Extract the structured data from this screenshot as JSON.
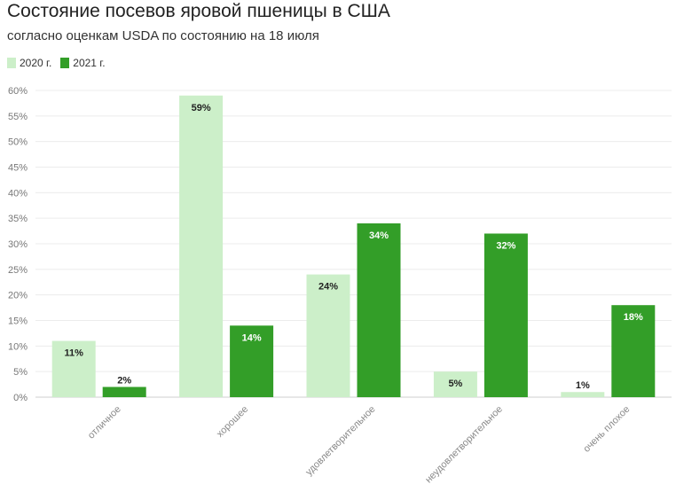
{
  "title": "Состояние посевов яровой пшеницы в США",
  "subtitle": "согласно оценкам USDA по состоянию на 18 июля",
  "colors": {
    "s2020": "#ccefc9",
    "s2021": "#339e28"
  },
  "chart_data": {
    "type": "bar",
    "categories": [
      "отличное",
      "хорошее",
      "удовлетворительное",
      "неудовлетворительное",
      "очень плохое"
    ],
    "series": [
      {
        "name": "2020 г.",
        "values": [
          11,
          59,
          24,
          5,
          1
        ]
      },
      {
        "name": "2021 г.",
        "values": [
          2,
          14,
          34,
          32,
          18
        ]
      }
    ],
    "ylim": [
      0,
      60
    ],
    "yticks": [
      0,
      5,
      10,
      15,
      20,
      25,
      30,
      35,
      40,
      45,
      50,
      55,
      60
    ],
    "value_suffix": "%",
    "grid": true,
    "legend": "top-left",
    "xlabel": "",
    "ylabel": ""
  }
}
